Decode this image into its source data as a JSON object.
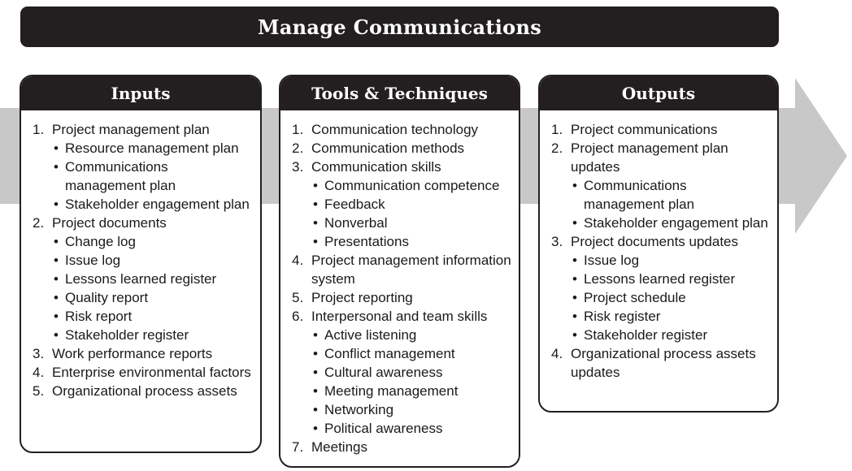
{
  "title": "Manage Communications",
  "colors": {
    "dark": "#231f20",
    "arrow": "#c8c8c8",
    "text": "#1a1a1a"
  },
  "panels": [
    {
      "header": "Inputs",
      "items": [
        {
          "num": "1.",
          "text": "Project management plan",
          "sub": [
            "Resource management plan",
            "Communications management plan",
            "Stakeholder engagement plan"
          ]
        },
        {
          "num": "2.",
          "text": "Project documents",
          "sub": [
            "Change log",
            "Issue log",
            "Lessons learned register",
            "Quality report",
            "Risk report",
            "Stakeholder register"
          ]
        },
        {
          "num": "3.",
          "text": "Work performance reports",
          "sub": []
        },
        {
          "num": "4.",
          "text": "Enterprise environmental factors",
          "sub": []
        },
        {
          "num": "5.",
          "text": "Organizational process assets",
          "sub": []
        }
      ]
    },
    {
      "header": "Tools & Techniques",
      "items": [
        {
          "num": "1.",
          "text": "Communication technology",
          "sub": []
        },
        {
          "num": "2.",
          "text": "Communication methods",
          "sub": []
        },
        {
          "num": "3.",
          "text": "Communication skills",
          "sub": [
            "Communication competence",
            "Feedback",
            "Nonverbal",
            "Presentations"
          ]
        },
        {
          "num": "4.",
          "text": "Project management information system",
          "sub": []
        },
        {
          "num": "5.",
          "text": "Project reporting",
          "sub": []
        },
        {
          "num": "6.",
          "text": "Interpersonal and team skills",
          "sub": [
            "Active listening",
            "Conflict management",
            "Cultural awareness",
            "Meeting management",
            "Networking",
            "Political awareness"
          ]
        },
        {
          "num": "7.",
          "text": "Meetings",
          "sub": []
        }
      ]
    },
    {
      "header": "Outputs",
      "items": [
        {
          "num": "1.",
          "text": "Project communications",
          "sub": []
        },
        {
          "num": "2.",
          "text": "Project management plan updates",
          "sub": [
            "Communications management plan",
            "Stakeholder engagement plan"
          ]
        },
        {
          "num": "3.",
          "text": "Project documents updates",
          "sub": [
            "Issue log",
            "Lessons learned register",
            "Project schedule",
            "Risk register",
            "Stakeholder register"
          ]
        },
        {
          "num": "4.",
          "text": "Organizational process assets  updates",
          "sub": []
        }
      ]
    }
  ]
}
